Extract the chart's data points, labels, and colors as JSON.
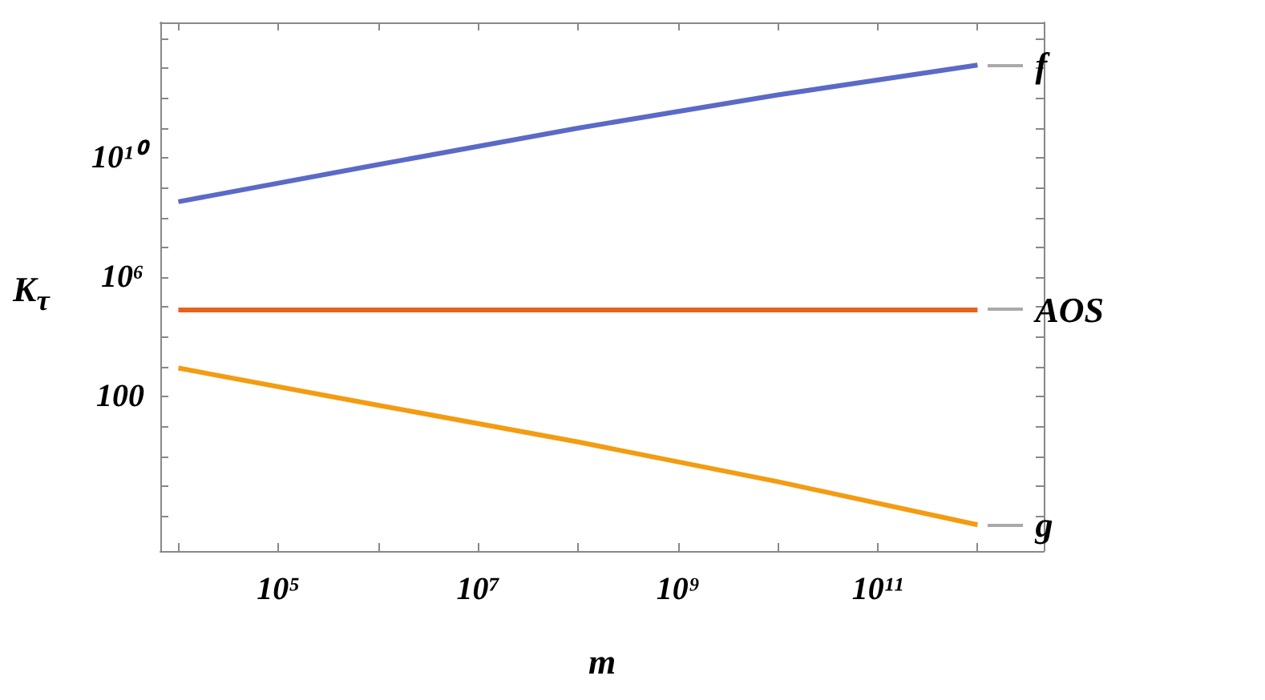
{
  "chart_data": {
    "type": "line",
    "xlabel": "m",
    "ylabel": "K$_{τ}$",
    "log": "xy",
    "legend": false,
    "grid": false,
    "x": [
      10000,
      1000000,
      100000000,
      10000000000,
      1000000000000
    ],
    "series": [
      {
        "name": "f",
        "color": "#5b6ac6",
        "values": [
          340000000,
          6000000000,
          100000000000,
          1300000000000,
          13000000000000
        ]
      },
      {
        "name": "AOS",
        "color": "#e8601c",
        "values": [
          80000,
          80000,
          80000,
          80000,
          80000
        ]
      },
      {
        "name": "g",
        "color": "#f39c12",
        "values": [
          900,
          51,
          3,
          0.14,
          0.005
        ]
      }
    ],
    "xlim": [
      6600,
      4600000000000
    ],
    "ylim": [
      0.00066,
      350000000000000
    ],
    "xticks": [
      {
        "value": 10000,
        "label": null
      },
      {
        "value": 100000,
        "label": "10⁵"
      },
      {
        "value": 1000000,
        "label": null
      },
      {
        "value": 10000000,
        "label": "10⁷"
      },
      {
        "value": 100000000,
        "label": null
      },
      {
        "value": 1000000000,
        "label": "10⁹"
      },
      {
        "value": 10000000000,
        "label": null
      },
      {
        "value": 100000000000,
        "label": "10¹¹"
      },
      {
        "value": 1000000000000,
        "label": null
      }
    ],
    "yticks": [
      {
        "value": 0.01,
        "label": null
      },
      {
        "value": 0.1,
        "label": null
      },
      {
        "value": 1,
        "label": null
      },
      {
        "value": 10,
        "label": null
      },
      100,
      {
        "value": 1000,
        "label": null
      },
      {
        "value": 10000,
        "label": null
      },
      {
        "value": 100000,
        "label": null
      },
      {
        "value": 1000000,
        "label": "10⁶"
      },
      {
        "value": 10000000,
        "label": null
      },
      {
        "value": 100000000,
        "label": null
      },
      {
        "value": 1000000000,
        "label": null
      },
      {
        "value": 10000000000,
        "label": "10¹⁰"
      },
      {
        "value": 100000000000,
        "label": null
      },
      {
        "value": 1000000000000,
        "label": null
      },
      {
        "value": 10000000000000,
        "label": null
      },
      {
        "value": 100000000000000,
        "label": null
      }
    ]
  }
}
